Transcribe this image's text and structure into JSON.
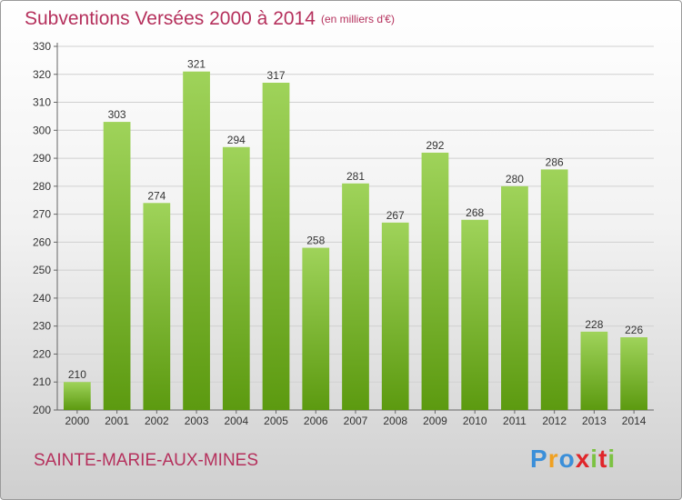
{
  "chart_data": {
    "type": "bar",
    "title": "Subventions Versées 2000 à 2014",
    "subtitle": "(en milliers d'€)",
    "categories": [
      "2000",
      "2001",
      "2002",
      "2003",
      "2004",
      "2005",
      "2006",
      "2007",
      "2008",
      "2009",
      "2010",
      "2011",
      "2012",
      "2013",
      "2014"
    ],
    "values": [
      210,
      303,
      274,
      321,
      294,
      317,
      258,
      281,
      267,
      292,
      268,
      280,
      286,
      228,
      226
    ],
    "ylim": [
      200,
      330
    ],
    "yticks": [
      200,
      210,
      220,
      230,
      240,
      250,
      260,
      270,
      280,
      290,
      300,
      310,
      320,
      330
    ],
    "grid": true,
    "bar_color_top": "#9fd35a",
    "bar_color_bottom": "#5c9a10"
  },
  "footer": {
    "commune": "SAINTE-MARIE-AUX-MINES",
    "logo_letters": [
      "P",
      "r",
      "o",
      "x",
      "i",
      "t",
      "i"
    ],
    "logo_colors": [
      "#3b8fd9",
      "#f0a020",
      "#3b8fd9",
      "#e0262a",
      "#7cc242",
      "#e0262a",
      "#7cc242"
    ]
  },
  "colors": {
    "title": "#b5305c",
    "grid": "#d0d0d0"
  }
}
